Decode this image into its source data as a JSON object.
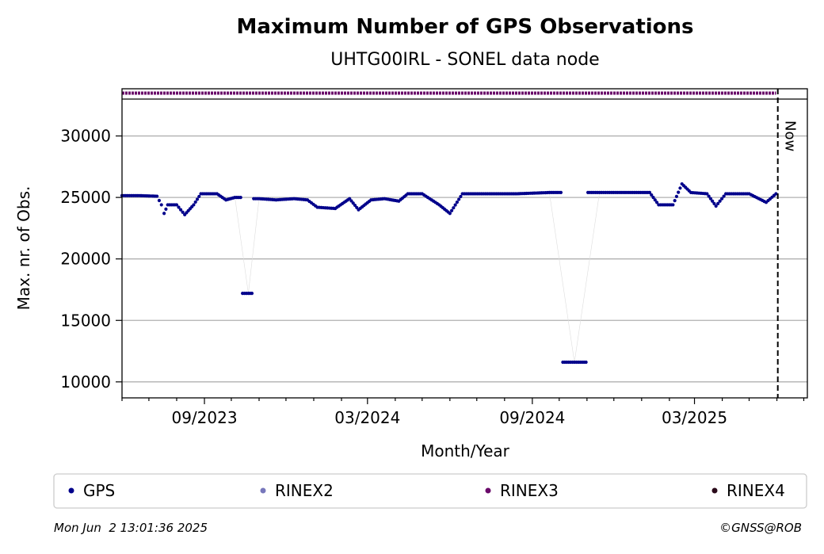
{
  "chart_data": {
    "type": "scatter",
    "title": "Maximum Number of GPS Observations",
    "subtitle": "UHTG00IRL - SONEL data node",
    "xlabel": "Month/Year",
    "ylabel": "Max. nr. of Obs.",
    "x_tick_labels": [
      "09/2023",
      "03/2024",
      "09/2024",
      "03/2025"
    ],
    "x_tick_dates": [
      "2023-09-01",
      "2024-03-01",
      "2024-09-01",
      "2025-03-01"
    ],
    "xlim": [
      "2023-06-01",
      "2025-07-05"
    ],
    "ylim": [
      8700,
      33000
    ],
    "y_ticks": [
      10000,
      15000,
      20000,
      25000,
      30000
    ],
    "grid": "horizontal",
    "now_marker": {
      "label": "Now",
      "date": "2025-06-02"
    },
    "strip_series": {
      "name": "RINEX3",
      "start": "2023-06-01",
      "end": "2025-05-31",
      "color": "#6a0a6a"
    },
    "series": [
      {
        "name": "GPS",
        "color": "#00008b",
        "points": [
          [
            "2023-06-01",
            25150
          ],
          [
            "2023-06-20",
            25150
          ],
          [
            "2023-07-10",
            25100
          ],
          [
            "2023-07-15",
            24400
          ],
          [
            "2023-07-18",
            23700
          ],
          [
            "2023-07-22",
            24400
          ],
          [
            "2023-08-01",
            24400
          ],
          [
            "2023-08-10",
            23600
          ],
          [
            "2023-08-20",
            24400
          ],
          [
            "2023-08-28",
            25300
          ],
          [
            "2023-09-15",
            25300
          ],
          [
            "2023-09-25",
            24800
          ],
          [
            "2023-10-05",
            25000
          ],
          [
            "2023-10-20",
            17200
          ],
          [
            "2023-11-01",
            24900
          ],
          [
            "2023-11-20",
            24800
          ],
          [
            "2023-12-10",
            24900
          ],
          [
            "2023-12-25",
            24800
          ],
          [
            "2024-01-05",
            24200
          ],
          [
            "2024-01-25",
            24100
          ],
          [
            "2024-02-10",
            24900
          ],
          [
            "2024-02-20",
            24000
          ],
          [
            "2024-03-05",
            24800
          ],
          [
            "2024-03-20",
            24900
          ],
          [
            "2024-04-05",
            24700
          ],
          [
            "2024-04-15",
            25300
          ],
          [
            "2024-05-01",
            25300
          ],
          [
            "2024-05-20",
            24400
          ],
          [
            "2024-06-01",
            23700
          ],
          [
            "2024-06-15",
            25300
          ],
          [
            "2024-07-15",
            25300
          ],
          [
            "2024-08-15",
            25300
          ],
          [
            "2024-09-20",
            25400
          ],
          [
            "2024-10-18",
            11600
          ],
          [
            "2024-11-15",
            25400
          ],
          [
            "2024-12-20",
            25400
          ],
          [
            "2025-01-10",
            25400
          ],
          [
            "2025-01-20",
            24400
          ],
          [
            "2025-02-05",
            24400
          ],
          [
            "2025-02-15",
            26100
          ],
          [
            "2025-02-25",
            25400
          ],
          [
            "2025-03-15",
            25300
          ],
          [
            "2025-03-25",
            24300
          ],
          [
            "2025-04-05",
            25300
          ],
          [
            "2025-05-01",
            25300
          ],
          [
            "2025-05-20",
            24600
          ],
          [
            "2025-05-31",
            25300
          ]
        ]
      },
      {
        "name": "RINEX2",
        "color": "#7777bb",
        "points": []
      },
      {
        "name": "RINEX3",
        "color": "#6a0a6a",
        "points": []
      },
      {
        "name": "RINEX4",
        "color": "#2a0a1a",
        "points": []
      }
    ],
    "legend": {
      "placement": "bottom"
    }
  },
  "footer": {
    "timestamp": "Mon Jun  2 13:01:36 2025",
    "credit": "©GNSS@ROB"
  }
}
